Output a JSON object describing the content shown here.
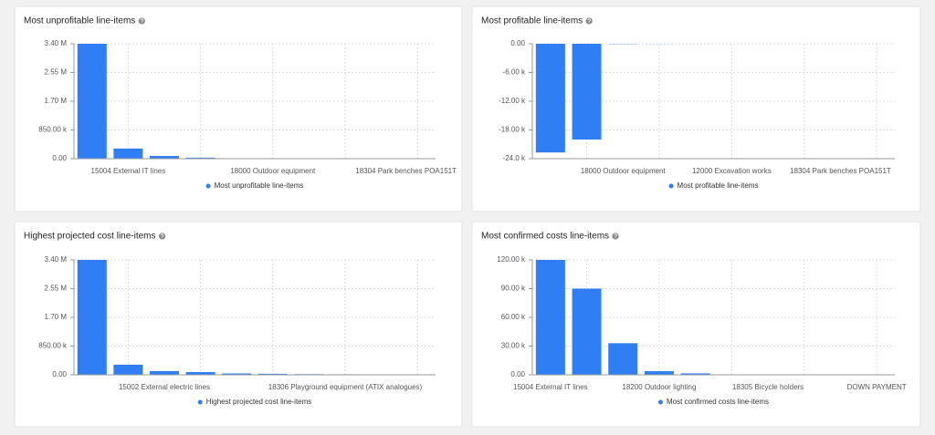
{
  "chart_data": [
    {
      "type": "bar",
      "title": "Most unprofitable line-items",
      "categories": [
        null,
        "15004 External IT lines",
        null,
        null,
        null,
        "18000 Outdoor equipment",
        null,
        null,
        null,
        "18304 Park benches POA151T"
      ],
      "series": [
        {
          "name": "Most unprofitable line-items",
          "color": "#2f7ef4",
          "values": [
            3400000,
            300000,
            80000,
            30000,
            5000,
            2000,
            1000,
            500,
            300,
            100
          ]
        }
      ],
      "ylim": [
        0,
        3400000
      ],
      "yticks": [
        {
          "value": 0,
          "label": "0.00"
        },
        {
          "value": 850000,
          "label": "850.00 k"
        },
        {
          "value": 1700000,
          "label": "1.70 M"
        },
        {
          "value": 2550000,
          "label": "2.55 M"
        },
        {
          "value": 3400000,
          "label": "3.40 M"
        }
      ],
      "grid": true,
      "legend": "bottom"
    },
    {
      "type": "bar",
      "title": "Most profitable line-items",
      "categories": [
        null,
        null,
        "18000 Outdoor equipment",
        null,
        null,
        "12000 Excavation works",
        null,
        null,
        "18304 Park benches POA151T",
        null
      ],
      "series": [
        {
          "name": "Most profitable line-items",
          "color": "#2f7ef4",
          "values": [
            -22700,
            -20000,
            -50,
            -20,
            -10,
            -5,
            -3,
            -2,
            -1,
            -1
          ]
        }
      ],
      "ylim": [
        -24000,
        0
      ],
      "yticks": [
        {
          "value": -24000,
          "label": "-24.0 k"
        },
        {
          "value": -18000,
          "label": "-18.00 k"
        },
        {
          "value": -12000,
          "label": "-12.00 k"
        },
        {
          "value": -6000,
          "label": "-6.00 k"
        },
        {
          "value": 0,
          "label": "0.00"
        }
      ],
      "grid": true,
      "legend": "bottom"
    },
    {
      "type": "bar",
      "title": "Highest projected cost line-items",
      "categories": [
        null,
        null,
        "15002 External electric lines",
        null,
        null,
        null,
        null,
        "18306 Playground equipment (ATIX analogues)",
        null,
        null
      ],
      "series": [
        {
          "name": "Highest projected cost line-items",
          "color": "#2f7ef4",
          "values": [
            3400000,
            300000,
            110000,
            80000,
            40000,
            30000,
            20000,
            15000,
            10000,
            5000
          ]
        }
      ],
      "ylim": [
        0,
        3400000
      ],
      "yticks": [
        {
          "value": 0,
          "label": "0.00"
        },
        {
          "value": 850000,
          "label": "850.00 k"
        },
        {
          "value": 1700000,
          "label": "1.70 M"
        },
        {
          "value": 2550000,
          "label": "2.55 M"
        },
        {
          "value": 3400000,
          "label": "3.40 M"
        }
      ],
      "grid": true,
      "legend": "bottom"
    },
    {
      "type": "bar",
      "title": "Most confirmed costs line-items",
      "categories": [
        "15004 External IT lines",
        null,
        null,
        "18200 Outdoor lighting",
        null,
        null,
        "18305 Bicycle holders",
        null,
        null,
        "DOWN PAYMENT"
      ],
      "series": [
        {
          "name": "Most confirmed costs line-items",
          "color": "#2f7ef4",
          "values": [
            120000,
            90000,
            33000,
            3800,
            1500,
            300,
            200,
            100,
            50,
            20
          ]
        }
      ],
      "ylim": [
        0,
        120000
      ],
      "yticks": [
        {
          "value": 0,
          "label": "0.00"
        },
        {
          "value": 30000,
          "label": "30.00 k"
        },
        {
          "value": 60000,
          "label": "60.00 k"
        },
        {
          "value": 90000,
          "label": "90.00 k"
        },
        {
          "value": 120000,
          "label": "120.00 k"
        }
      ],
      "grid": true,
      "legend": "bottom"
    }
  ]
}
